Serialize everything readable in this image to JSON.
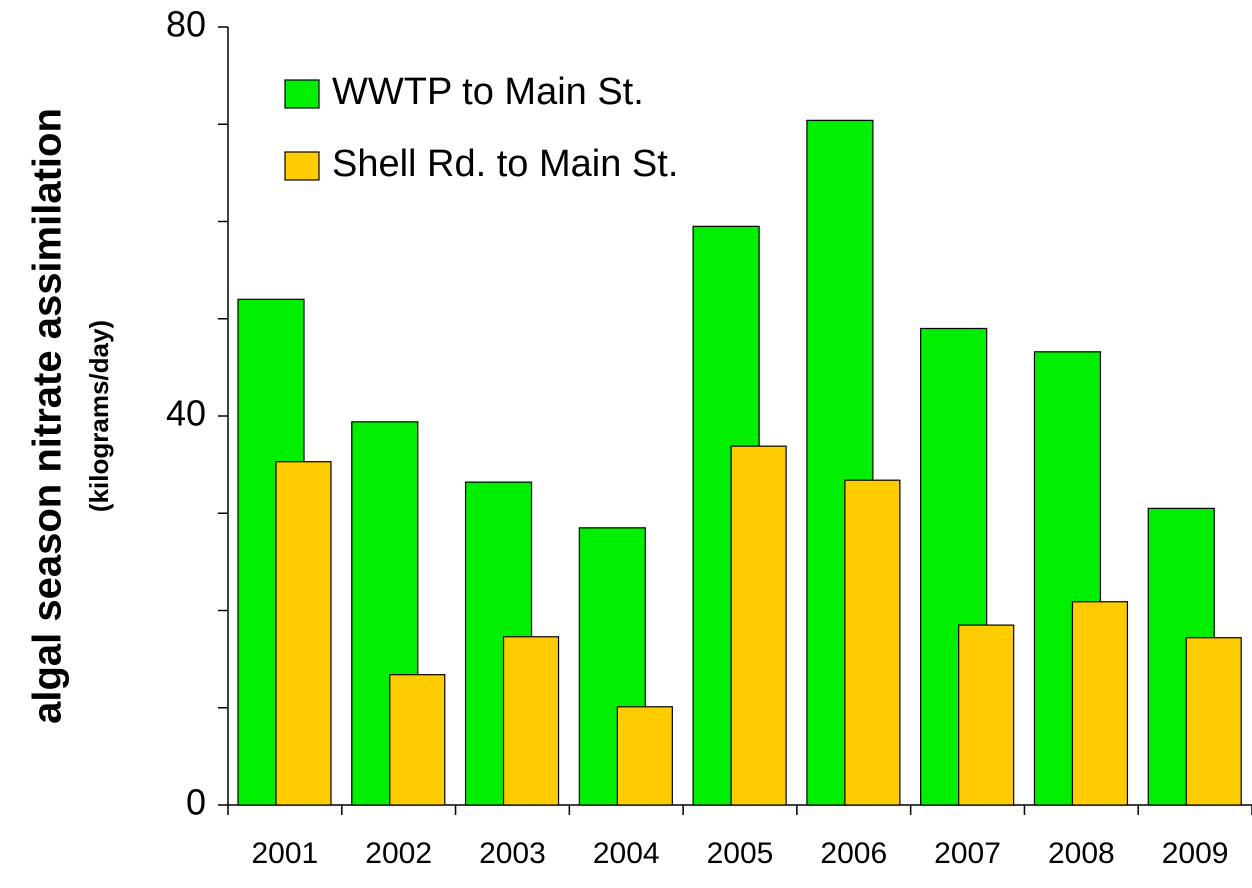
{
  "chart_data": {
    "type": "bar",
    "ylabel": "algal season nitrate assimilation",
    "ylabel_sub": "(kilograms/day)",
    "categories": [
      "2001",
      "2002",
      "2003",
      "2004",
      "2005",
      "2006",
      "2007",
      "2008",
      "2009"
    ],
    "series": [
      {
        "name": "WWTP to Main St.",
        "color": "#00ee00",
        "values": [
          52.0,
          39.4,
          33.2,
          28.5,
          59.5,
          70.4,
          49.0,
          46.6,
          30.5
        ]
      },
      {
        "name": "Shell Rd. to Main St.",
        "color": "#ffcc00",
        "values": [
          35.3,
          13.4,
          17.3,
          10.1,
          36.9,
          33.4,
          18.5,
          20.9,
          17.2
        ]
      }
    ],
    "ylim": [
      0,
      80
    ],
    "yticks": [
      0,
      40,
      80
    ],
    "yminorticks": [
      10,
      20,
      30,
      50,
      60,
      70
    ],
    "legend": "top-left"
  }
}
